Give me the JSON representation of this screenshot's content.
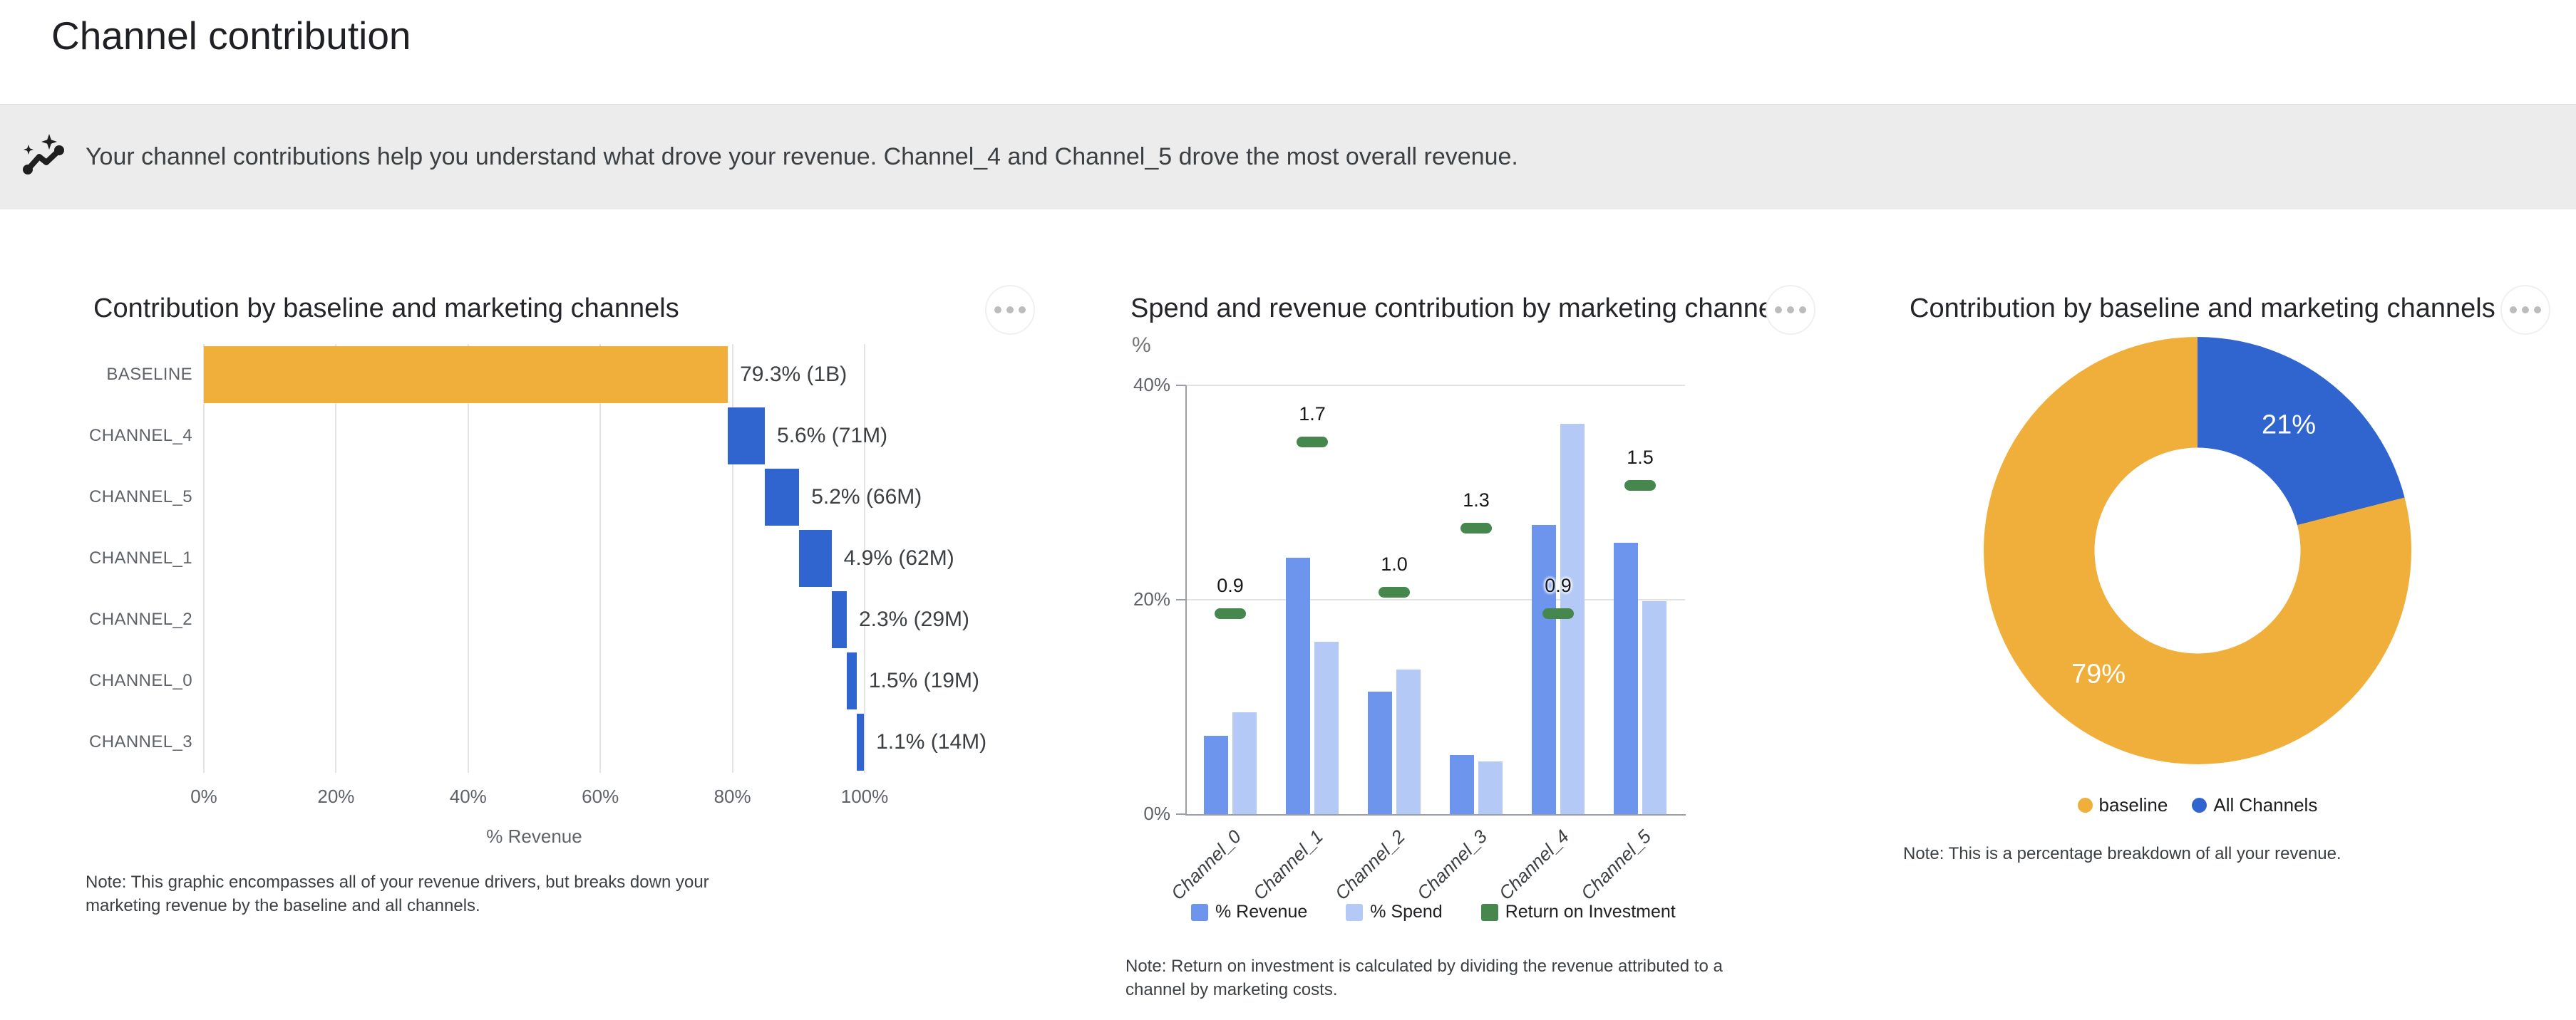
{
  "page": {
    "title": "Channel contribution",
    "insight": {
      "icon": "insights-sparkline-icon",
      "text": "Your channel contributions help you understand what drove your revenue. Channel_4 and Channel_5 drove the most overall revenue."
    }
  },
  "colors": {
    "baseline_orange": "#f0af3a",
    "channel_blue": "#3065d0",
    "revenue_blue": "#6d95ee",
    "spend_blue": "#b4c9f6",
    "roi_green": "#45874c",
    "insight_bg": "#ececec",
    "gridline": "#e3e3e3",
    "axis_line": "#9aa0a6"
  },
  "chart_data": [
    {
      "id": "waterfall",
      "type": "bar",
      "subtype": "horizontal-waterfall",
      "title": "Contribution by baseline and marketing channels",
      "categories": [
        "BASELINE",
        "CHANNEL_4",
        "CHANNEL_5",
        "CHANNEL_1",
        "CHANNEL_2",
        "CHANNEL_0",
        "CHANNEL_3"
      ],
      "values_pct": [
        79.3,
        5.6,
        5.2,
        4.9,
        2.3,
        1.5,
        1.1
      ],
      "value_labels": [
        "79.3% (1B)",
        "5.6% (71M)",
        "5.2% (66M)",
        "4.9% (62M)",
        "2.3% (29M)",
        "1.5% (19M)",
        "1.1% (14M)"
      ],
      "xlabel": "% Revenue",
      "x_ticks": [
        "0%",
        "20%",
        "40%",
        "60%",
        "80%",
        "100%"
      ],
      "xlim": [
        0,
        100
      ],
      "grid": "vertical",
      "note": "Note: This graphic encompasses all of your revenue drivers, but breaks down your marketing revenue by the baseline and all channels."
    },
    {
      "id": "grouped",
      "type": "bar",
      "subtype": "grouped-vertical",
      "title": "Spend and revenue contribution by marketing channel",
      "categories": [
        "Channel_0",
        "Channel_1",
        "Channel_2",
        "Channel_3",
        "Channel_4",
        "Channel_5"
      ],
      "series": [
        {
          "name": "% Revenue",
          "values": [
            7.3,
            23.9,
            11.4,
            5.5,
            27.0,
            25.3
          ],
          "color": "#6d95ee",
          "style": "bar"
        },
        {
          "name": "% Spend",
          "values": [
            9.5,
            16.1,
            13.5,
            4.9,
            36.4,
            19.9
          ],
          "color": "#b4c9f6",
          "style": "bar"
        },
        {
          "name": "Return on Investment",
          "values": [
            0.9,
            1.7,
            1.0,
            1.3,
            0.9,
            1.5
          ],
          "labels": [
            "0.9",
            "1.7",
            "1.0",
            "1.3",
            "0.9",
            "1.5"
          ],
          "color": "#45874c",
          "style": "dash-marker",
          "axis_note": "ROI 1.0 plotted at 20% line"
        }
      ],
      "ylabel": "%",
      "y_ticks": [
        "0%",
        "20%",
        "40%"
      ],
      "ylim": [
        0,
        40
      ],
      "legend_position": "bottom",
      "note": "Note: Return on investment is calculated by dividing the revenue attributed to a channel by marketing costs."
    },
    {
      "id": "donut",
      "type": "pie",
      "subtype": "donut",
      "title": "Contribution by baseline and marketing channels",
      "slices": [
        {
          "label": "All Channels",
          "value_pct": 21,
          "display": "21%",
          "color": "#3065d0"
        },
        {
          "label": "baseline",
          "value_pct": 79,
          "display": "79%",
          "color": "#f0af3a"
        }
      ],
      "start_angle_deg": 0,
      "legend": [
        {
          "label": "baseline",
          "color": "#f0af3a"
        },
        {
          "label": "All Channels",
          "color": "#3065d0"
        }
      ],
      "note": "Note: This is a percentage breakdown of all your revenue."
    }
  ]
}
